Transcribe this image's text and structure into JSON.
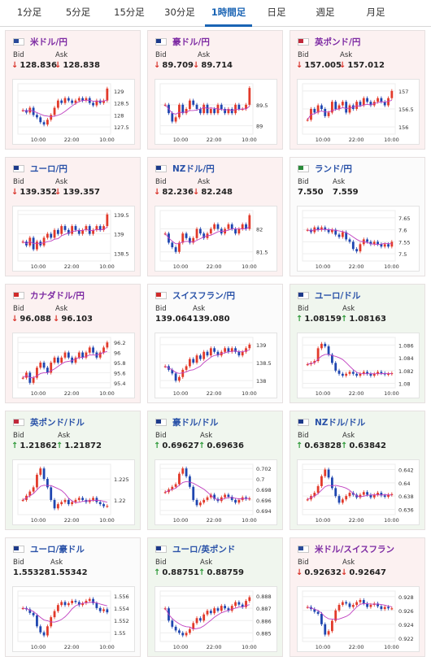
{
  "tabs": [
    "1分足",
    "5分足",
    "15分足",
    "30分足",
    "1時間足",
    "日足",
    "週足",
    "月足"
  ],
  "active_tab": "1時間足",
  "bid_label": "Bid",
  "ask_label": "Ask",
  "panels": [
    {
      "name": "米ドル/円",
      "dir": "down",
      "bid": "128.836",
      "ask": "128.838",
      "flag": "flag-us-icon",
      "yticks": [
        "129",
        "128.5",
        "128",
        "127.5"
      ],
      "ylim": [
        127.2,
        129.3
      ],
      "xticks": [
        "10:00",
        "22:00",
        "10:00"
      ],
      "close": [
        128.2,
        128.1,
        128.3,
        128.0,
        127.9,
        127.7,
        127.6,
        127.8,
        128.0,
        128.3,
        128.6,
        128.5,
        128.7,
        128.6,
        128.5,
        128.6,
        128.7,
        128.6,
        128.7,
        128.5,
        128.4,
        128.6,
        128.5,
        128.6,
        129.1
      ]
    },
    {
      "name": "豪ドル/円",
      "dir": "down",
      "bid": "89.709",
      "ask": "89.714",
      "flag": "flag-au-icon",
      "yticks": [
        "89.5",
        "89"
      ],
      "ylim": [
        88.8,
        90.0
      ],
      "xticks": [
        "10:00",
        "22:00",
        "10:00"
      ],
      "close": [
        89.5,
        89.3,
        89.1,
        89.2,
        89.5,
        89.3,
        89.4,
        89.6,
        89.5,
        89.4,
        89.3,
        89.5,
        89.3,
        89.4,
        89.3,
        89.5,
        89.4,
        89.3,
        89.4,
        89.3,
        89.5,
        89.4,
        89.4,
        89.5,
        89.9
      ]
    },
    {
      "name": "英ポンド/円",
      "dir": "down",
      "bid": "157.005",
      "ask": "157.012",
      "flag": "flag-uk-icon",
      "yticks": [
        "157",
        "156.5",
        "156"
      ],
      "ylim": [
        155.8,
        157.2
      ],
      "xticks": [
        "10:00",
        "22:00",
        "10:00"
      ],
      "close": [
        156.2,
        156.5,
        156.4,
        156.6,
        156.5,
        156.3,
        156.4,
        156.7,
        156.5,
        156.6,
        156.7,
        156.4,
        156.6,
        156.5,
        156.7,
        156.6,
        156.8,
        156.7,
        156.6,
        156.7,
        156.8,
        156.7,
        156.6,
        156.8,
        157.0
      ]
    },
    {
      "name": "ユーロ/円",
      "dir": "down",
      "bid": "139.352",
      "ask": "139.357",
      "flag": "flag-eu-icon",
      "yticks": [
        "139.5",
        "139",
        "138.5"
      ],
      "ylim": [
        138.3,
        139.6
      ],
      "xticks": [
        "10:00",
        "22:00",
        "10:00"
      ],
      "close": [
        138.8,
        138.7,
        138.9,
        138.6,
        138.8,
        138.7,
        138.9,
        139.0,
        138.9,
        139.1,
        139.0,
        139.2,
        139.1,
        139.0,
        139.2,
        139.1,
        139.0,
        139.1,
        139.2,
        139.0,
        139.1,
        139.2,
        139.1,
        139.2,
        139.5
      ]
    },
    {
      "name": "NZドル/円",
      "dir": "down",
      "bid": "82.236",
      "ask": "82.248",
      "flag": "flag-nz-icon",
      "yticks": [
        "82",
        "81.5"
      ],
      "ylim": [
        81.3,
        82.4
      ],
      "xticks": [
        "10:00",
        "22:00",
        "10:00"
      ],
      "close": [
        81.9,
        81.7,
        81.6,
        81.5,
        81.7,
        81.9,
        81.8,
        81.7,
        81.8,
        82.0,
        81.9,
        81.8,
        81.9,
        82.0,
        82.1,
        82.0,
        81.9,
        82.0,
        82.1,
        82.0,
        81.9,
        82.0,
        82.1,
        82.0,
        82.3
      ]
    },
    {
      "name": "ランド/円",
      "dir": "flat",
      "bid": "7.550",
      "ask": "7.559",
      "flag": "flag-za-icon",
      "yticks": [
        "7.65",
        "7.6",
        "7.55",
        "7.5"
      ],
      "ylim": [
        7.47,
        7.68
      ],
      "xticks": [
        "10:00",
        "22:00",
        "10:00"
      ],
      "close": [
        7.6,
        7.59,
        7.61,
        7.6,
        7.61,
        7.6,
        7.59,
        7.6,
        7.58,
        7.57,
        7.59,
        7.56,
        7.55,
        7.52,
        7.51,
        7.54,
        7.56,
        7.55,
        7.54,
        7.55,
        7.54,
        7.53,
        7.54,
        7.53,
        7.55
      ]
    },
    {
      "name": "カナダドル/円",
      "dir": "down",
      "bid": "96.088",
      "ask": "96.103",
      "flag": "flag-ca-icon",
      "yticks": [
        "96.2",
        "96",
        "95.8",
        "95.6",
        "95.4"
      ],
      "ylim": [
        95.3,
        96.3
      ],
      "xticks": [
        "10:00",
        "22:00",
        "10:00"
      ],
      "close": [
        95.5,
        95.6,
        95.4,
        95.5,
        95.7,
        95.8,
        95.7,
        95.6,
        95.8,
        95.9,
        95.8,
        95.9,
        96.0,
        95.9,
        95.8,
        95.9,
        96.0,
        95.9,
        96.0,
        96.1,
        96.0,
        95.9,
        96.0,
        96.1,
        96.2
      ]
    },
    {
      "name": "スイスフラン/円",
      "dir": "flat",
      "bid": "139.064",
      "ask": "139.080",
      "flag": "flag-ch-icon",
      "yticks": [
        "139",
        "138.5",
        "138"
      ],
      "ylim": [
        137.8,
        139.2
      ],
      "xticks": [
        "10:00",
        "22:00",
        "10:00"
      ],
      "close": [
        138.4,
        138.3,
        138.2,
        138.0,
        138.1,
        138.3,
        138.4,
        138.6,
        138.5,
        138.7,
        138.6,
        138.8,
        138.7,
        138.9,
        138.8,
        138.7,
        138.8,
        138.9,
        138.8,
        138.9,
        138.8,
        138.7,
        138.8,
        138.9,
        139.0
      ]
    },
    {
      "name": "ユーロ/ドル",
      "dir": "up",
      "bid": "1.08159",
      "ask": "1.08163",
      "flag": "flag-eu-icon",
      "yticks": [
        "1.086",
        "1.084",
        "1.082",
        "1.08"
      ],
      "ylim": [
        1.0793,
        1.0872
      ],
      "xticks": [
        "10:00",
        "22:00",
        "10:00"
      ],
      "close": [
        1.083,
        1.0832,
        1.0835,
        1.0855,
        1.0862,
        1.0858,
        1.0845,
        1.0832,
        1.082,
        1.0815,
        1.0812,
        1.0815,
        1.0818,
        1.0815,
        1.0812,
        1.0815,
        1.0818,
        1.0815,
        1.0812,
        1.0815,
        1.0818,
        1.0816,
        1.0814,
        1.0815,
        1.0816
      ]
    },
    {
      "name": "英ポンド/ドル",
      "dir": "up",
      "bid": "1.21862",
      "ask": "1.21872",
      "flag": "flag-uk-icon",
      "yticks": [
        "1.225",
        "1.22"
      ],
      "ylim": [
        1.2165,
        1.2285
      ],
      "xticks": [
        "10:00",
        "22:00",
        "10:00"
      ],
      "close": [
        1.22,
        1.221,
        1.222,
        1.223,
        1.226,
        1.2275,
        1.225,
        1.223,
        1.22,
        1.218,
        1.219,
        1.2195,
        1.22,
        1.219,
        1.2195,
        1.22,
        1.2205,
        1.22,
        1.2195,
        1.22,
        1.2205,
        1.2195,
        1.219,
        1.2185,
        1.2186
      ]
    },
    {
      "name": "豪ドル/ドル",
      "dir": "up",
      "bid": "0.69627",
      "ask": "0.69636",
      "flag": "flag-au-icon",
      "yticks": [
        "0.702",
        "0.7",
        "0.698",
        "0.696",
        "0.694"
      ],
      "ylim": [
        0.6932,
        0.7028
      ],
      "xticks": [
        "10:00",
        "22:00",
        "10:00"
      ],
      "close": [
        0.6975,
        0.698,
        0.6985,
        0.699,
        0.701,
        0.702,
        0.7005,
        0.6985,
        0.696,
        0.695,
        0.6955,
        0.696,
        0.6965,
        0.697,
        0.6962,
        0.6958,
        0.6965,
        0.697,
        0.6966,
        0.696,
        0.6955,
        0.696,
        0.6965,
        0.6962,
        0.6963
      ]
    },
    {
      "name": "NZドル/ドル",
      "dir": "up",
      "bid": "0.63828",
      "ask": "0.63842",
      "flag": "flag-nz-icon",
      "yticks": [
        "0.642",
        "0.64",
        "0.638",
        "0.636"
      ],
      "ylim": [
        0.6352,
        0.6428
      ],
      "xticks": [
        "10:00",
        "22:00",
        "10:00"
      ],
      "close": [
        0.6375,
        0.638,
        0.6385,
        0.6395,
        0.641,
        0.642,
        0.6408,
        0.6392,
        0.638,
        0.637,
        0.6375,
        0.638,
        0.6385,
        0.6382,
        0.6378,
        0.6382,
        0.6386,
        0.6382,
        0.6378,
        0.6382,
        0.6385,
        0.6381,
        0.6379,
        0.6382,
        0.6383
      ]
    },
    {
      "name": "ユーロ/豪ドル",
      "dir": "flat",
      "bid": "1.55328",
      "ask": "1.55342",
      "flag": "flag-eu-icon",
      "yticks": [
        "1.556",
        "1.554",
        "1.552",
        "1.55"
      ],
      "ylim": [
        1.5485,
        1.5568
      ],
      "xticks": [
        "10:00",
        "22:00",
        "10:00"
      ],
      "close": [
        1.554,
        1.5538,
        1.5532,
        1.5528,
        1.551,
        1.55,
        1.5495,
        1.551,
        1.5525,
        1.5535,
        1.5545,
        1.555,
        1.5545,
        1.5548,
        1.5552,
        1.555,
        1.5545,
        1.5548,
        1.5552,
        1.5555,
        1.5548,
        1.554,
        1.5535,
        1.5538,
        1.5533
      ]
    },
    {
      "name": "ユーロ/英ポンド",
      "dir": "up",
      "bid": "0.88751",
      "ask": "0.88759",
      "flag": "flag-eu-icon",
      "yticks": [
        "0.888",
        "0.887",
        "0.886",
        "0.885"
      ],
      "ylim": [
        0.8843,
        0.8884
      ],
      "xticks": [
        "10:00",
        "22:00",
        "10:00"
      ],
      "close": [
        0.887,
        0.886,
        0.8855,
        0.8852,
        0.885,
        0.8848,
        0.885,
        0.8853,
        0.8858,
        0.8862,
        0.886,
        0.8865,
        0.8868,
        0.8866,
        0.887,
        0.8868,
        0.8872,
        0.887,
        0.8868,
        0.8872,
        0.8875,
        0.8873,
        0.8871,
        0.8876,
        0.8879
      ]
    },
    {
      "name": "米ドル/スイスフラン",
      "dir": "down",
      "bid": "0.92632",
      "ask": "0.92647",
      "flag": "flag-us-icon",
      "yticks": [
        "0.928",
        "0.926",
        "0.924",
        "0.922"
      ],
      "ylim": [
        0.9215,
        0.9288
      ],
      "xticks": [
        "10:00",
        "22:00",
        "10:00"
      ],
      "close": [
        0.9265,
        0.9262,
        0.9258,
        0.9255,
        0.924,
        0.9225,
        0.923,
        0.9245,
        0.926,
        0.9268,
        0.9272,
        0.927,
        0.9265,
        0.9268,
        0.9272,
        0.9275,
        0.927,
        0.9265,
        0.9268,
        0.927,
        0.9266,
        0.9262,
        0.9265,
        0.9263,
        0.9263
      ]
    }
  ],
  "colors": {
    "down": "#d9342b",
    "up": "#2f9a3a",
    "accent": "#1a64b4",
    "ma": "#c040c0",
    "candle_up": "#e23a2a",
    "candle_down": "#1f46b0"
  }
}
